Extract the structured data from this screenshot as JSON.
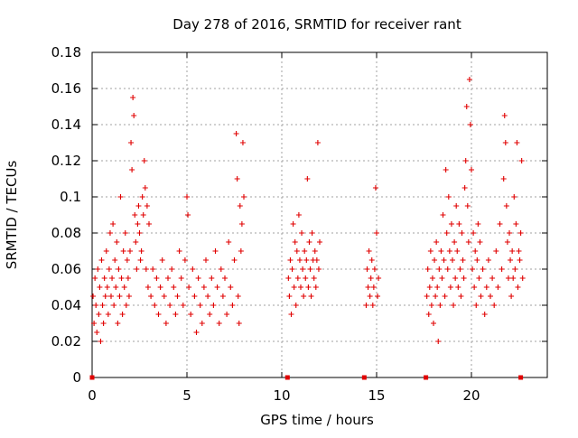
{
  "chart_data": {
    "type": "scatter",
    "title": "Day 278 of 2016, SRMTID for receiver rant",
    "xlabel": "GPS time / hours",
    "ylabel": "SRMTID / TECUs",
    "xlim": [
      0,
      24
    ],
    "ylim": [
      0,
      0.18
    ],
    "xticks": [
      0,
      5,
      10,
      15,
      20
    ],
    "xtick_labels": [
      "0",
      "5",
      "10",
      "15",
      "20"
    ],
    "yticks": [
      0,
      0.02,
      0.04,
      0.06,
      0.08,
      0.1,
      0.12,
      0.14,
      0.16,
      0.18
    ],
    "ytick_labels": [
      "0",
      "0.02",
      "0.04",
      "0.06",
      "0.08",
      "0.1",
      "0.12",
      "0.14",
      "0.16",
      "0.18"
    ],
    "grid": true,
    "marker_color": "#e00000",
    "marker_symbol": "+",
    "series": [
      {
        "name": "SRMTID",
        "points": [
          [
            0.05,
            0.045
          ],
          [
            0.1,
            0.03
          ],
          [
            0.15,
            0.055
          ],
          [
            0.2,
            0.04
          ],
          [
            0.25,
            0.025
          ],
          [
            0.3,
            0.06
          ],
          [
            0.35,
            0.035
          ],
          [
            0.4,
            0.05
          ],
          [
            0.45,
            0.02
          ],
          [
            0.5,
            0.065
          ],
          [
            0.55,
            0.04
          ],
          [
            0.6,
            0.03
          ],
          [
            0.65,
            0.055
          ],
          [
            0.7,
            0.045
          ],
          [
            0.75,
            0.07
          ],
          [
            0.8,
            0.05
          ],
          [
            0.85,
            0.035
          ],
          [
            0.9,
            0.06
          ],
          [
            0.95,
            0.08
          ],
          [
            1.0,
            0.045
          ],
          [
            1.05,
            0.055
          ],
          [
            1.1,
            0.085
          ],
          [
            1.15,
            0.04
          ],
          [
            1.2,
            0.065
          ],
          [
            1.25,
            0.05
          ],
          [
            1.3,
            0.075
          ],
          [
            1.35,
            0.03
          ],
          [
            1.4,
            0.06
          ],
          [
            1.45,
            0.045
          ],
          [
            1.5,
            0.1
          ],
          [
            1.55,
            0.055
          ],
          [
            1.6,
            0.035
          ],
          [
            1.65,
            0.07
          ],
          [
            1.7,
            0.05
          ],
          [
            1.75,
            0.08
          ],
          [
            1.8,
            0.04
          ],
          [
            1.85,
            0.065
          ],
          [
            1.9,
            0.055
          ],
          [
            1.95,
            0.045
          ],
          [
            2.0,
            0.07
          ],
          [
            2.05,
            0.13
          ],
          [
            2.1,
            0.115
          ],
          [
            2.15,
            0.155
          ],
          [
            2.2,
            0.145
          ],
          [
            2.25,
            0.09
          ],
          [
            2.3,
            0.075
          ],
          [
            2.35,
            0.06
          ],
          [
            2.4,
            0.085
          ],
          [
            2.45,
            0.095
          ],
          [
            2.5,
            0.08
          ],
          [
            2.55,
            0.065
          ],
          [
            2.6,
            0.07
          ],
          [
            2.65,
            0.1
          ],
          [
            2.7,
            0.09
          ],
          [
            2.75,
            0.12
          ],
          [
            2.8,
            0.105
          ],
          [
            2.85,
            0.06
          ],
          [
            2.9,
            0.095
          ],
          [
            2.95,
            0.05
          ],
          [
            3.0,
            0.085
          ],
          [
            3.1,
            0.045
          ],
          [
            3.2,
            0.06
          ],
          [
            3.3,
            0.04
          ],
          [
            3.4,
            0.055
          ],
          [
            3.5,
            0.035
          ],
          [
            3.6,
            0.05
          ],
          [
            3.7,
            0.065
          ],
          [
            3.8,
            0.045
          ],
          [
            3.9,
            0.03
          ],
          [
            4.0,
            0.055
          ],
          [
            4.1,
            0.04
          ],
          [
            4.2,
            0.06
          ],
          [
            4.3,
            0.05
          ],
          [
            4.4,
            0.035
          ],
          [
            4.5,
            0.045
          ],
          [
            4.6,
            0.07
          ],
          [
            4.7,
            0.055
          ],
          [
            4.8,
            0.04
          ],
          [
            4.9,
            0.065
          ],
          [
            5.0,
            0.1
          ],
          [
            5.05,
            0.09
          ],
          [
            5.1,
            0.05
          ],
          [
            5.2,
            0.035
          ],
          [
            5.3,
            0.06
          ],
          [
            5.4,
            0.045
          ],
          [
            5.5,
            0.025
          ],
          [
            5.6,
            0.055
          ],
          [
            5.7,
            0.04
          ],
          [
            5.8,
            0.03
          ],
          [
            5.9,
            0.05
          ],
          [
            6.0,
            0.065
          ],
          [
            6.1,
            0.045
          ],
          [
            6.2,
            0.035
          ],
          [
            6.3,
            0.055
          ],
          [
            6.4,
            0.04
          ],
          [
            6.5,
            0.07
          ],
          [
            6.6,
            0.05
          ],
          [
            6.7,
            0.03
          ],
          [
            6.8,
            0.06
          ],
          [
            6.9,
            0.045
          ],
          [
            7.0,
            0.055
          ],
          [
            7.1,
            0.035
          ],
          [
            7.2,
            0.075
          ],
          [
            7.3,
            0.05
          ],
          [
            7.4,
            0.04
          ],
          [
            7.5,
            0.065
          ],
          [
            7.6,
            0.135
          ],
          [
            7.65,
            0.11
          ],
          [
            7.7,
            0.045
          ],
          [
            7.75,
            0.03
          ],
          [
            7.8,
            0.095
          ],
          [
            7.85,
            0.07
          ],
          [
            7.9,
            0.085
          ],
          [
            7.95,
            0.13
          ],
          [
            8.0,
            0.1
          ],
          [
            10.35,
            0.055
          ],
          [
            10.4,
            0.045
          ],
          [
            10.45,
            0.065
          ],
          [
            10.5,
            0.035
          ],
          [
            10.55,
            0.06
          ],
          [
            10.6,
            0.085
          ],
          [
            10.65,
            0.05
          ],
          [
            10.7,
            0.075
          ],
          [
            10.75,
            0.04
          ],
          [
            10.8,
            0.07
          ],
          [
            10.85,
            0.055
          ],
          [
            10.9,
            0.09
          ],
          [
            10.95,
            0.065
          ],
          [
            11.0,
            0.05
          ],
          [
            11.05,
            0.08
          ],
          [
            11.1,
            0.06
          ],
          [
            11.15,
            0.045
          ],
          [
            11.2,
            0.07
          ],
          [
            11.25,
            0.055
          ],
          [
            11.3,
            0.065
          ],
          [
            11.35,
            0.11
          ],
          [
            11.4,
            0.05
          ],
          [
            11.45,
            0.075
          ],
          [
            11.5,
            0.06
          ],
          [
            11.55,
            0.045
          ],
          [
            11.6,
            0.08
          ],
          [
            11.65,
            0.065
          ],
          [
            11.7,
            0.055
          ],
          [
            11.75,
            0.07
          ],
          [
            11.8,
            0.05
          ],
          [
            11.85,
            0.065
          ],
          [
            11.9,
            0.13
          ],
          [
            11.95,
            0.06
          ],
          [
            12.0,
            0.075
          ],
          [
            14.45,
            0.04
          ],
          [
            14.5,
            0.06
          ],
          [
            14.55,
            0.05
          ],
          [
            14.6,
            0.07
          ],
          [
            14.65,
            0.045
          ],
          [
            14.7,
            0.055
          ],
          [
            14.75,
            0.065
          ],
          [
            14.8,
            0.04
          ],
          [
            14.85,
            0.05
          ],
          [
            14.9,
            0.06
          ],
          [
            14.95,
            0.105
          ],
          [
            15.0,
            0.08
          ],
          [
            15.05,
            0.045
          ],
          [
            15.1,
            0.055
          ],
          [
            17.65,
            0.045
          ],
          [
            17.7,
            0.06
          ],
          [
            17.75,
            0.035
          ],
          [
            17.8,
            0.05
          ],
          [
            17.85,
            0.07
          ],
          [
            17.9,
            0.04
          ],
          [
            17.95,
            0.055
          ],
          [
            18.0,
            0.03
          ],
          [
            18.05,
            0.065
          ],
          [
            18.1,
            0.045
          ],
          [
            18.15,
            0.075
          ],
          [
            18.2,
            0.05
          ],
          [
            18.25,
            0.02
          ],
          [
            18.3,
            0.06
          ],
          [
            18.35,
            0.04
          ],
          [
            18.4,
            0.07
          ],
          [
            18.45,
            0.055
          ],
          [
            18.5,
            0.09
          ],
          [
            18.55,
            0.065
          ],
          [
            18.6,
            0.045
          ],
          [
            18.65,
            0.115
          ],
          [
            18.7,
            0.08
          ],
          [
            18.75,
            0.06
          ],
          [
            18.8,
            0.1
          ],
          [
            18.85,
            0.07
          ],
          [
            18.9,
            0.05
          ],
          [
            18.95,
            0.085
          ],
          [
            19.0,
            0.065
          ],
          [
            19.05,
            0.04
          ],
          [
            19.1,
            0.075
          ],
          [
            19.15,
            0.055
          ],
          [
            19.2,
            0.095
          ],
          [
            19.25,
            0.07
          ],
          [
            19.3,
            0.05
          ],
          [
            19.35,
            0.085
          ],
          [
            19.4,
            0.06
          ],
          [
            19.45,
            0.045
          ],
          [
            19.5,
            0.08
          ],
          [
            19.55,
            0.065
          ],
          [
            19.6,
            0.055
          ],
          [
            19.65,
            0.105
          ],
          [
            19.7,
            0.12
          ],
          [
            19.75,
            0.15
          ],
          [
            19.8,
            0.095
          ],
          [
            19.85,
            0.075
          ],
          [
            19.9,
            0.165
          ],
          [
            19.95,
            0.14
          ],
          [
            20.0,
            0.115
          ],
          [
            20.05,
            0.06
          ],
          [
            20.1,
            0.08
          ],
          [
            20.15,
            0.05
          ],
          [
            20.2,
            0.07
          ],
          [
            20.25,
            0.04
          ],
          [
            20.3,
            0.065
          ],
          [
            20.35,
            0.085
          ],
          [
            20.4,
            0.055
          ],
          [
            20.45,
            0.075
          ],
          [
            20.5,
            0.045
          ],
          [
            20.6,
            0.06
          ],
          [
            20.7,
            0.035
          ],
          [
            20.8,
            0.05
          ],
          [
            20.9,
            0.065
          ],
          [
            21.0,
            0.045
          ],
          [
            21.1,
            0.055
          ],
          [
            21.2,
            0.04
          ],
          [
            21.3,
            0.07
          ],
          [
            21.4,
            0.05
          ],
          [
            21.5,
            0.085
          ],
          [
            21.6,
            0.06
          ],
          [
            21.7,
            0.11
          ],
          [
            21.75,
            0.145
          ],
          [
            21.8,
            0.13
          ],
          [
            21.85,
            0.095
          ],
          [
            21.9,
            0.075
          ],
          [
            21.95,
            0.055
          ],
          [
            22.0,
            0.08
          ],
          [
            22.05,
            0.065
          ],
          [
            22.1,
            0.045
          ],
          [
            22.15,
            0.07
          ],
          [
            22.2,
            0.055
          ],
          [
            22.25,
            0.1
          ],
          [
            22.3,
            0.06
          ],
          [
            22.35,
            0.085
          ],
          [
            22.4,
            0.13
          ],
          [
            22.45,
            0.05
          ],
          [
            22.5,
            0.07
          ],
          [
            22.55,
            0.065
          ],
          [
            22.6,
            0.08
          ],
          [
            22.65,
            0.12
          ],
          [
            22.7,
            0.055
          ]
        ]
      }
    ],
    "coverage_markers_x": [
      0.0,
      10.3,
      14.35,
      17.6,
      22.6
    ]
  }
}
